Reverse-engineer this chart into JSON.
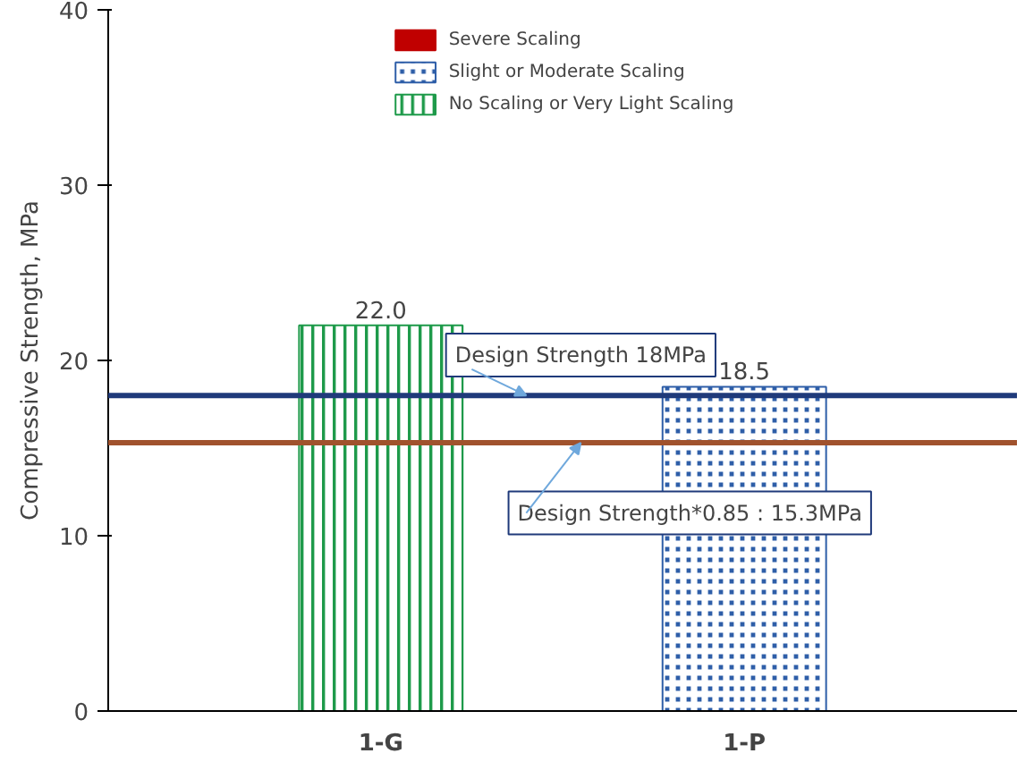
{
  "chart_data": {
    "type": "bar",
    "categories": [
      "1-G",
      "1-P"
    ],
    "ylabel": "Compressive Strength, MPa",
    "ylim": [
      0,
      40
    ],
    "yticks": [
      0,
      10,
      20,
      30,
      40
    ],
    "grid": false,
    "legend": "top",
    "data_labels": true,
    "series": [
      {
        "name": "Severe Scaling",
        "color": "#c00000",
        "values": [
          null,
          null
        ]
      },
      {
        "name": "Slight or Moderate Scaling",
        "color": "#2e5ea8",
        "values": [
          null,
          18.5
        ],
        "value_labels": [
          null,
          "18.5"
        ]
      },
      {
        "name": "No Scaling or Very Light Scaling",
        "color": "#1e9a4a",
        "values": [
          22.0,
          null
        ],
        "value_labels": [
          "22.0",
          null
        ]
      }
    ],
    "ref_lines": [
      {
        "axis": "y",
        "value": 18,
        "label": "Design Strength 18MPa",
        "color": "#1f3a7a"
      },
      {
        "axis": "y",
        "value": 15.3,
        "label": "Design Strength*0.85 : 15.3MPa",
        "color": "#a0522d"
      }
    ]
  }
}
